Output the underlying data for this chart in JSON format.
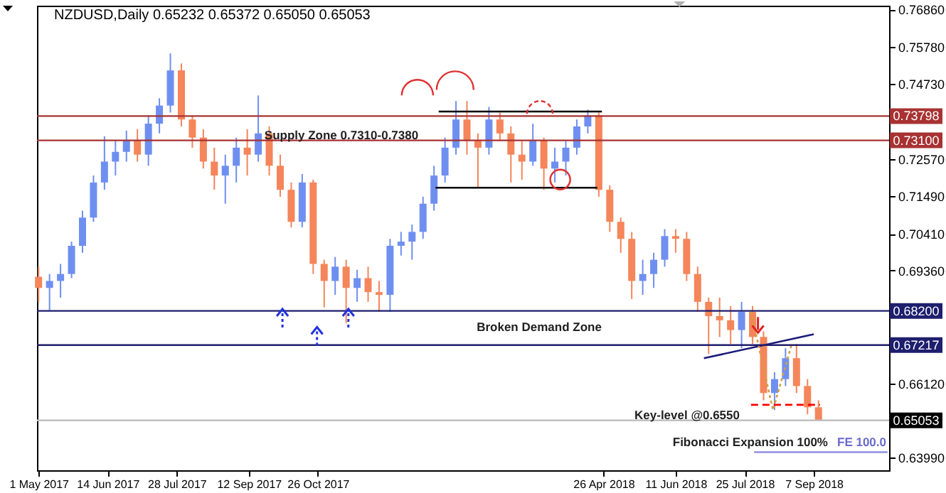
{
  "chart_data": {
    "type": "candlestick",
    "title": "NZDUSD,Daily  0.65232 0.65372 0.65050 0.65053",
    "x": [
      "2017-05-01",
      "2017-05-08",
      "2017-05-15",
      "2017-05-22",
      "2017-05-29",
      "2017-06-05",
      "2017-06-12",
      "2017-06-19",
      "2017-06-26",
      "2017-07-03",
      "2017-07-10",
      "2017-07-17",
      "2017-07-24",
      "2017-07-31",
      "2017-08-07",
      "2017-08-14",
      "2017-08-21",
      "2017-08-28",
      "2017-09-04",
      "2017-09-11",
      "2017-09-18",
      "2017-09-25",
      "2017-10-02",
      "2017-10-09",
      "2017-10-16",
      "2017-10-23",
      "2017-10-30",
      "2017-11-06",
      "2017-11-13",
      "2017-11-20",
      "2017-11-27",
      "2017-12-04",
      "2017-12-11",
      "2017-12-18",
      "2017-12-25",
      "2018-01-01",
      "2018-01-08",
      "2018-01-15",
      "2018-01-22",
      "2018-01-29",
      "2018-02-05",
      "2018-02-12",
      "2018-02-19",
      "2018-02-26",
      "2018-03-05",
      "2018-03-12",
      "2018-03-19",
      "2018-03-26",
      "2018-04-02",
      "2018-04-09",
      "2018-04-16",
      "2018-04-23",
      "2018-04-30",
      "2018-05-07",
      "2018-05-14",
      "2018-05-21",
      "2018-05-28",
      "2018-06-04",
      "2018-06-11",
      "2018-06-18",
      "2018-06-25",
      "2018-07-02",
      "2018-07-09",
      "2018-07-16",
      "2018-07-23",
      "2018-07-30",
      "2018-08-06",
      "2018-08-13",
      "2018-08-20",
      "2018-08-27",
      "2018-09-03",
      "2018-09-10"
    ],
    "ohlc": [
      [
        0.6918,
        0.6947,
        0.6846,
        0.6886
      ],
      [
        0.6886,
        0.6926,
        0.6822,
        0.6906
      ],
      [
        0.6906,
        0.6955,
        0.6858,
        0.6926
      ],
      [
        0.6926,
        0.7019,
        0.6914,
        0.7007
      ],
      [
        0.7007,
        0.7108,
        0.6987,
        0.7088
      ],
      [
        0.7088,
        0.7209,
        0.7076,
        0.7189
      ],
      [
        0.7189,
        0.7322,
        0.7168,
        0.7249
      ],
      [
        0.7249,
        0.731,
        0.7209,
        0.7277
      ],
      [
        0.7277,
        0.7338,
        0.7249,
        0.731
      ],
      [
        0.731,
        0.7342,
        0.7249,
        0.7269
      ],
      [
        0.7269,
        0.7382,
        0.7237,
        0.7358
      ],
      [
        0.7358,
        0.7431,
        0.733,
        0.741
      ],
      [
        0.741,
        0.756,
        0.739,
        0.7511
      ],
      [
        0.7511,
        0.7531,
        0.735,
        0.737
      ],
      [
        0.737,
        0.7382,
        0.7289,
        0.7318
      ],
      [
        0.7318,
        0.7342,
        0.7229,
        0.7249
      ],
      [
        0.7249,
        0.7289,
        0.7168,
        0.7209
      ],
      [
        0.7209,
        0.7269,
        0.7128,
        0.7237
      ],
      [
        0.7237,
        0.7318,
        0.7189,
        0.7289
      ],
      [
        0.7289,
        0.7342,
        0.7209,
        0.7269
      ],
      [
        0.7269,
        0.7439,
        0.7249,
        0.733
      ],
      [
        0.733,
        0.735,
        0.7209,
        0.7237
      ],
      [
        0.7237,
        0.7269,
        0.7148,
        0.7168
      ],
      [
        0.7168,
        0.7189,
        0.706,
        0.7076
      ],
      [
        0.7076,
        0.7213,
        0.706,
        0.7189
      ],
      [
        0.7189,
        0.7197,
        0.6926,
        0.6955
      ],
      [
        0.6955,
        0.6967,
        0.683,
        0.6906
      ],
      [
        0.6906,
        0.6975,
        0.6866,
        0.6947
      ],
      [
        0.6947,
        0.6967,
        0.6785,
        0.6886
      ],
      [
        0.6886,
        0.6938,
        0.6846,
        0.6914
      ],
      [
        0.6914,
        0.6947,
        0.6846,
        0.6874
      ],
      [
        0.6874,
        0.6906,
        0.6817,
        0.6866
      ],
      [
        0.6866,
        0.7027,
        0.6817,
        0.7007
      ],
      [
        0.7007,
        0.7047,
        0.6979,
        0.7019
      ],
      [
        0.7019,
        0.7068,
        0.6967,
        0.7047
      ],
      [
        0.7047,
        0.7148,
        0.7027,
        0.7128
      ],
      [
        0.7128,
        0.7237,
        0.7108,
        0.7209
      ],
      [
        0.7209,
        0.7318,
        0.7189,
        0.7289
      ],
      [
        0.7289,
        0.7423,
        0.7269,
        0.737
      ],
      [
        0.737,
        0.7423,
        0.7269,
        0.731
      ],
      [
        0.731,
        0.733,
        0.7176,
        0.7289
      ],
      [
        0.7289,
        0.7406,
        0.7269,
        0.737
      ],
      [
        0.737,
        0.739,
        0.731,
        0.733
      ],
      [
        0.733,
        0.735,
        0.7189,
        0.7269
      ],
      [
        0.7269,
        0.731,
        0.7197,
        0.7249
      ],
      [
        0.7249,
        0.7358,
        0.7237,
        0.731
      ],
      [
        0.731,
        0.7318,
        0.7168,
        0.7229
      ],
      [
        0.7229,
        0.7289,
        0.7189,
        0.7249
      ],
      [
        0.7249,
        0.731,
        0.7209,
        0.7289
      ],
      [
        0.7289,
        0.737,
        0.7269,
        0.735
      ],
      [
        0.735,
        0.7398,
        0.733,
        0.7382
      ],
      [
        0.7382,
        0.739,
        0.7148,
        0.7168
      ],
      [
        0.7168,
        0.7181,
        0.7047,
        0.7076
      ],
      [
        0.7076,
        0.7088,
        0.6987,
        0.7027
      ],
      [
        0.7027,
        0.7047,
        0.6854,
        0.6906
      ],
      [
        0.6906,
        0.6967,
        0.6866,
        0.6926
      ],
      [
        0.6926,
        0.6987,
        0.6886,
        0.6967
      ],
      [
        0.6967,
        0.7055,
        0.6947,
        0.7035
      ],
      [
        0.7035,
        0.7055,
        0.6987,
        0.7027
      ],
      [
        0.7027,
        0.7047,
        0.6906,
        0.6926
      ],
      [
        0.6926,
        0.6947,
        0.6817,
        0.6846
      ],
      [
        0.6846,
        0.6858,
        0.6696,
        0.6805
      ],
      [
        0.6805,
        0.6858,
        0.6745,
        0.6793
      ],
      [
        0.6793,
        0.6834,
        0.6725,
        0.6765
      ],
      [
        0.6765,
        0.6846,
        0.6713,
        0.6817
      ],
      [
        0.6817,
        0.6834,
        0.6725,
        0.6745
      ],
      [
        0.6745,
        0.6761,
        0.6563,
        0.6584
      ],
      [
        0.6584,
        0.6644,
        0.6535,
        0.6624
      ],
      [
        0.6624,
        0.6713,
        0.6604,
        0.6684
      ],
      [
        0.6684,
        0.6725,
        0.6584,
        0.6604
      ],
      [
        0.6604,
        0.6624,
        0.6523,
        0.6543
      ],
      [
        0.6543,
        0.6563,
        0.6503,
        0.65053
      ]
    ],
    "colors": [
      "#f5855a",
      "#6f8ff0",
      "#6f8ff0",
      "#6f8ff0",
      "#6f8ff0",
      "#6f8ff0",
      "#6f8ff0",
      "#6f8ff0",
      "#6f8ff0",
      "#f5855a",
      "#6f8ff0",
      "#6f8ff0",
      "#6f8ff0",
      "#f5855a",
      "#f5855a",
      "#f5855a",
      "#f5855a",
      "#6f8ff0",
      "#6f8ff0",
      "#f5855a",
      "#6f8ff0",
      "#f5855a",
      "#f5855a",
      "#f5855a",
      "#6f8ff0",
      "#f5855a",
      "#f5855a",
      "#6f8ff0",
      "#f5855a",
      "#6f8ff0",
      "#f5855a",
      "#f5855a",
      "#6f8ff0",
      "#6f8ff0",
      "#6f8ff0",
      "#6f8ff0",
      "#6f8ff0",
      "#6f8ff0",
      "#6f8ff0",
      "#f5855a",
      "#f5855a",
      "#6f8ff0",
      "#f5855a",
      "#f5855a",
      "#f5855a",
      "#6f8ff0",
      "#f5855a",
      "#6f8ff0",
      "#6f8ff0",
      "#6f8ff0",
      "#6f8ff0",
      "#f5855a",
      "#f5855a",
      "#f5855a",
      "#f5855a",
      "#6f8ff0",
      "#6f8ff0",
      "#6f8ff0",
      "#f5855a",
      "#f5855a",
      "#f5855a",
      "#f5855a",
      "#f5855a",
      "#f5855a",
      "#6f8ff0",
      "#f5855a",
      "#f5855a",
      "#6f8ff0",
      "#6f8ff0",
      "#f5855a",
      "#f5855a",
      "#f5855a"
    ],
    "xlim": [
      "2017-04-30",
      "2018-10-25"
    ],
    "xticks": [
      {
        "value": "2017-05-01",
        "label": "1 May 2017"
      },
      {
        "value": "2017-06-14",
        "label": "14 Jun 2017"
      },
      {
        "value": "2017-07-28",
        "label": "28 Jul 2017"
      },
      {
        "value": "2017-09-12",
        "label": "12 Sep 2017"
      },
      {
        "value": "2017-10-26",
        "label": "26 Oct 2017"
      },
      {
        "value": "2018-04-26",
        "label": "26 Apr 2018"
      },
      {
        "value": "2018-06-11",
        "label": "11 Jun 2018"
      },
      {
        "value": "2018-07-25",
        "label": "25 Jul 2018"
      },
      {
        "value": "2018-09-07",
        "label": "7 Sep 2018"
      }
    ],
    "ylim": [
      0.6362,
      0.7697
    ],
    "yticks": [
      {
        "value": 0.7686,
        "label": "0.76860"
      },
      {
        "value": 0.7578,
        "label": "0.75780"
      },
      {
        "value": 0.7473,
        "label": "0.74730"
      },
      {
        "value": 0.7257,
        "label": "0.72570"
      },
      {
        "value": 0.7149,
        "label": "0.71490"
      },
      {
        "value": 0.7041,
        "label": "0.70410"
      },
      {
        "value": 0.6936,
        "label": "0.69360"
      },
      {
        "value": 0.6612,
        "label": "0.66120"
      },
      {
        "value": 0.6399,
        "label": "0.63990"
      }
    ],
    "series": [
      {
        "type": "line",
        "x": [
          "2018-01-11",
          "2018-04-25"
        ],
        "values": [
          0.7393,
          0.7393
        ],
        "color": "#000000"
      },
      {
        "type": "line",
        "x": [
          "2018-01-09",
          "2018-04-22"
        ],
        "values": [
          0.7174,
          0.7174
        ],
        "color": "#000000"
      },
      {
        "type": "line",
        "x": [
          "2018-06-29",
          "2018-09-07"
        ],
        "values": [
          0.6684,
          0.6753
        ],
        "color": "#1a1a7a"
      },
      {
        "type": "line",
        "x": [
          "2018-07-29",
          "2018-08-12",
          "2018-08-24"
        ],
        "values": [
          0.6817,
          0.6535,
          0.6725
        ],
        "color": "#d2a040",
        "line_style": "dotted"
      },
      {
        "type": "line",
        "x": [
          "2018-07-29",
          "2018-09-11"
        ],
        "values": [
          0.655,
          0.655
        ],
        "color": "#ff0000",
        "line_style": "dashed"
      },
      {
        "type": "line",
        "x": [
          "2018-07-31",
          "2018-10-24"
        ],
        "values": [
          0.6414,
          0.6414
        ],
        "color": "#9090e0"
      }
    ],
    "ref_lines": [
      {
        "axis": "y",
        "value": 0.73798,
        "label": "0.73798",
        "color": "#a83232"
      },
      {
        "axis": "y",
        "value": 0.731,
        "label": "0.73100",
        "color": "#a83232"
      },
      {
        "axis": "y",
        "value": 0.682,
        "label": "0.68200",
        "color": "#1e1e6e"
      },
      {
        "axis": "y",
        "value": 0.67217,
        "label": "0.67217",
        "color": "#1e1e6e"
      },
      {
        "axis": "y",
        "value": 0.65053,
        "label": "0.65053",
        "color": "#c0c0c0"
      }
    ],
    "annotations": [
      "Supply Zone 0.7310-0.7380",
      "Broken Demand Zone",
      "Key-level @0.6550",
      "Fibonacci Expansion 100%",
      "FE 100.0"
    ]
  }
}
